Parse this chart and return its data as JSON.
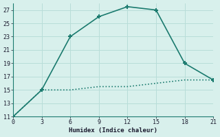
{
  "line1_x": [
    0,
    3,
    6,
    9,
    12,
    15,
    18,
    21
  ],
  "line1_y": [
    11,
    15,
    23,
    26,
    27.5,
    27,
    19,
    16.5
  ],
  "line2_x": [
    0,
    3,
    6,
    9,
    12,
    15,
    18,
    21
  ],
  "line2_y": [
    11,
    15,
    15,
    15.5,
    15.5,
    16,
    16.5,
    16.5
  ],
  "line_color": "#1a7a6e",
  "bg_color": "#d8f0ec",
  "grid_color": "#b8ddd8",
  "xlabel": "Humidex (Indice chaleur)",
  "xlim": [
    0,
    21
  ],
  "ylim": [
    11,
    28
  ],
  "xticks": [
    0,
    3,
    6,
    9,
    12,
    15,
    18,
    21
  ],
  "yticks": [
    11,
    13,
    15,
    17,
    19,
    21,
    23,
    25,
    27
  ]
}
